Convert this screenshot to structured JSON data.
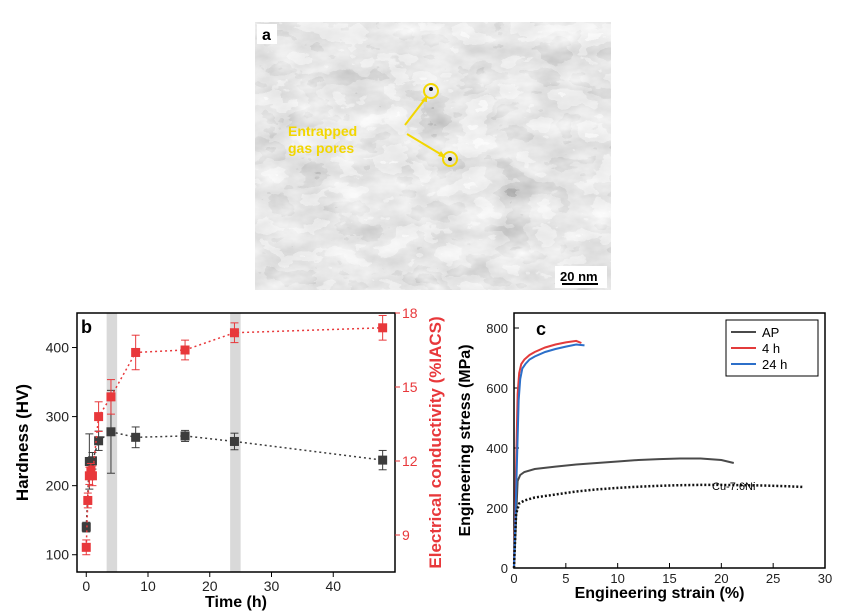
{
  "panel_a": {
    "label": "a",
    "annotation": "Entrapped\ngas pores",
    "scale_bar": "20 nm",
    "colors": {
      "annotation": "#f2d600"
    }
  },
  "chart_data": [
    {
      "panel": "b",
      "type": "scatter",
      "xlabel": "Time (h)",
      "ylabel": "Hardness (HV)",
      "y2label": "Electrical conductivity (%IACS)",
      "xlim": [
        -1.5,
        50
      ],
      "ylim": [
        75,
        450
      ],
      "y2lim": [
        7.5,
        18
      ],
      "xticks": [
        0,
        10,
        20,
        30,
        40
      ],
      "yticks": [
        100,
        200,
        300,
        400
      ],
      "y2ticks": [
        9,
        12,
        15,
        18
      ],
      "shaded_bands": [
        [
          3.3,
          5
        ],
        [
          23.3,
          25
        ]
      ],
      "series": [
        {
          "axis": "left",
          "color": "#3d3d3d",
          "x": [
            0,
            0.5,
            1,
            2,
            4,
            8,
            16,
            24,
            48
          ],
          "y": [
            140,
            235,
            236,
            265,
            278,
            270,
            272,
            264,
            237
          ],
          "err": [
            7,
            40,
            12,
            14,
            60,
            15,
            8,
            12,
            14
          ]
        },
        {
          "axis": "right",
          "color": "#e8383b",
          "x": [
            0,
            0.25,
            0.5,
            0.75,
            1,
            2,
            4,
            8,
            16,
            24,
            48
          ],
          "y": [
            8.5,
            10.4,
            11.4,
            11.6,
            11.4,
            13.8,
            14.6,
            16.4,
            16.5,
            17.2,
            17.4
          ],
          "err": [
            0.3,
            0.3,
            0.35,
            0.3,
            0.4,
            0.6,
            0.7,
            0.7,
            0.4,
            0.4,
            0.5
          ]
        }
      ]
    },
    {
      "panel": "c",
      "type": "line",
      "xlabel": "Engineering strain (%)",
      "ylabel": "Engineering stress (MPa)",
      "xlim": [
        0,
        30
      ],
      "ylim": [
        0,
        850
      ],
      "xticks": [
        0,
        5,
        10,
        15,
        20,
        25,
        30
      ],
      "yticks": [
        0,
        200,
        400,
        600,
        800
      ],
      "legend_position": "top-right",
      "annotation": "Cu-7.6Ni",
      "series": [
        {
          "name": "AP",
          "color": "#4a4a4a",
          "x": [
            0,
            0.35,
            0.6,
            1,
            2,
            4,
            6,
            8,
            10,
            12,
            14,
            16,
            18,
            20,
            21.2
          ],
          "y": [
            0,
            290,
            310,
            320,
            330,
            338,
            345,
            350,
            355,
            360,
            363,
            365,
            365,
            360,
            350
          ]
        },
        {
          "name": "4 h",
          "color": "#e33b3b",
          "x": [
            0,
            0.35,
            0.5,
            0.7,
            1,
            1.5,
            2,
            3,
            4,
            5,
            6,
            6.5
          ],
          "y": [
            0,
            580,
            650,
            680,
            695,
            710,
            720,
            735,
            745,
            752,
            757,
            750
          ]
        },
        {
          "name": "24 h",
          "color": "#2c6fc9",
          "x": [
            0,
            0.45,
            0.6,
            0.8,
            1.1,
            1.5,
            2,
            3,
            4,
            5,
            6,
            6.8
          ],
          "y": [
            0,
            560,
            630,
            665,
            680,
            695,
            705,
            720,
            730,
            738,
            745,
            742
          ]
        },
        {
          "name": "Cu-7.6Ni",
          "color": "#111111",
          "dotted": true,
          "x": [
            0,
            0.2,
            0.5,
            1,
            2,
            4,
            6,
            8,
            10,
            12,
            14,
            16,
            18,
            20,
            22,
            24,
            26,
            28
          ],
          "y": [
            0,
            180,
            215,
            225,
            235,
            245,
            255,
            262,
            267,
            271,
            274,
            276,
            277,
            277,
            276,
            275,
            273,
            270
          ]
        }
      ]
    }
  ]
}
